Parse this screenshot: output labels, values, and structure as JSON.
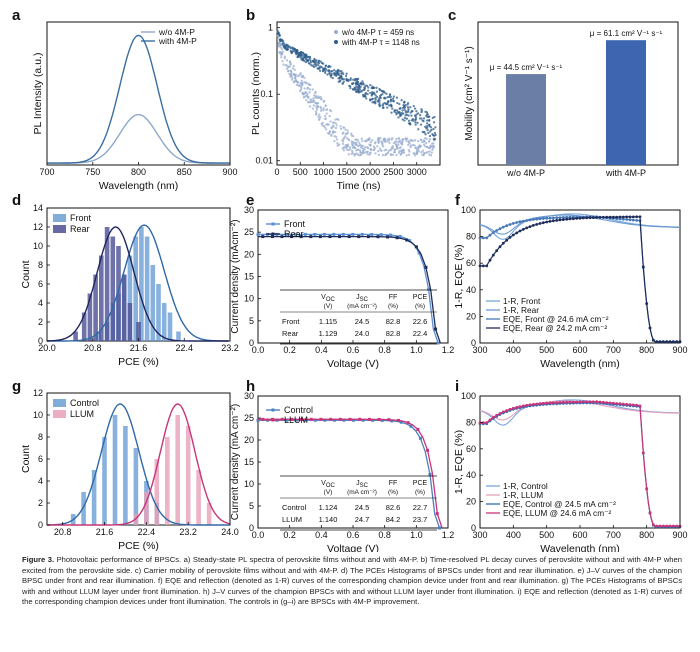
{
  "caption": {
    "label": "Figure 3.",
    "text": "Photovoltaic performance of BPSCs. a) Steady-state PL spectra of perovskite films without and with 4M-P. b) Time-resolved PL decay curves of perovskite without and with 4M-P when excited from the perovskite side. c) Carrier mobility of perovskite films without and with 4M-P. d) The PCEs Histograms of BPSCs under front and rear illumination. e) J–V curves of the champion BPSC under front and rear illumination. f) EQE and reflection (denoted as 1-R) curves of the corresponding champion device under front and rear illumination. g) The PCEs Histograms of BPSCs with and without LLUM layer under front illumination. h) J–V curves of the champion BPSCs with and without LLUM layer under front illumination. i) EQE and reflection (denoted as 1-R) curves of the corresponding champion devices under front illumination. The controls in (g–i) are BPSCs with 4M-P improvement."
  },
  "chart_data": [
    {
      "panel": "a",
      "type": "line",
      "xlabel": "Wavelength (nm)",
      "ylabel": "PL Intensity (a.u.)",
      "xlim": [
        700,
        900
      ],
      "xticks": [
        "700",
        "750",
        "800",
        "850",
        "900"
      ],
      "series": [
        {
          "name": "w/o 4M-P",
          "color": "#8ea9c9",
          "peak_x": 800,
          "peak_y": 0.38,
          "fwhm": 48
        },
        {
          "name": "with 4M-P",
          "color": "#3c6ea0",
          "peak_x": 800,
          "peak_y": 1.0,
          "fwhm": 48
        }
      ]
    },
    {
      "panel": "b",
      "type": "scatter",
      "xlabel": "Time (ns)",
      "ylabel": "PL counts (norm.)",
      "xlim": [
        0,
        3500
      ],
      "xticks": [
        "0",
        "500",
        "1000",
        "1500",
        "2000",
        "2500",
        "3000"
      ],
      "ylim_log": [
        0.01,
        1
      ],
      "yticks": [
        "0.01",
        "0.1",
        "1"
      ],
      "series": [
        {
          "name": "w/o 4M-P τ = 459 ns",
          "color": "#9aaed0",
          "tau": 459,
          "a1": 0.55,
          "t1": 40,
          "y_end": 0.03
        },
        {
          "name": "with 4M-P τ = 1148 ns",
          "color": "#2f5d8c",
          "tau": 1148,
          "a1": 0.4,
          "t1": 60,
          "y_end": 0.14
        }
      ]
    },
    {
      "panel": "c",
      "type": "bar",
      "xlabel": "",
      "ylabel": "Mobility (cm² V⁻¹ s⁻¹)",
      "ylim": [
        0,
        70
      ],
      "categories": [
        "w/o 4M-P",
        "with 4M-P"
      ],
      "values": [
        44.5,
        61.1
      ],
      "labels": [
        "μ = 44.5 cm² V⁻¹ s⁻¹",
        "μ = 61.1 cm² V⁻¹ s⁻¹"
      ]
    },
    {
      "panel": "d",
      "type": "bar",
      "xlabel": "PCE (%)",
      "ylabel": "Count",
      "xlim": [
        20.0,
        23.2
      ],
      "ylim": [
        0,
        14
      ],
      "xticks": [
        "20.0",
        "20.8",
        "21.6",
        "22.4",
        "23.2"
      ],
      "yticks": [
        "0",
        "2",
        "4",
        "6",
        "8",
        "10",
        "12",
        "14"
      ],
      "series": [
        {
          "name": "Front",
          "color": "#6a9fd4",
          "bins": [
            20.9,
            21.05,
            21.15,
            21.25,
            21.35,
            21.45,
            21.55,
            21.65,
            21.75,
            21.85,
            21.95,
            22.05,
            22.15,
            22.3
          ],
          "counts": [
            1,
            2,
            4,
            5,
            7,
            9,
            11,
            12,
            11,
            8,
            6,
            4,
            3,
            1
          ],
          "fit_mean": 21.7,
          "fit_sigma": 0.35,
          "fit_peak": 12.2
        },
        {
          "name": "Rear",
          "color": "#4b4f93",
          "bins": [
            20.5,
            20.65,
            20.75,
            20.85,
            20.95,
            21.05,
            21.15,
            21.25,
            21.35,
            21.45,
            21.6
          ],
          "counts": [
            1,
            3,
            5,
            7,
            9,
            12,
            11,
            10,
            7,
            4,
            2
          ],
          "fit_mean": 21.2,
          "fit_sigma": 0.32,
          "fit_peak": 12.0
        }
      ]
    },
    {
      "panel": "e",
      "type": "line",
      "xlabel": "Voltage (V)",
      "ylabel": "Current density (mAcm⁻²)",
      "xlim": [
        0,
        1.2
      ],
      "ylim": [
        0,
        30
      ],
      "xticks": [
        "0.0",
        "0.2",
        "0.4",
        "0.6",
        "0.8",
        "1.0",
        "1.2"
      ],
      "yticks": [
        "0",
        "5",
        "10",
        "15",
        "20",
        "25",
        "30"
      ],
      "series": [
        {
          "name": "Front",
          "color": "#5b8fd0",
          "jsc": 24.5,
          "voc": 1.115
        },
        {
          "name": "Rear",
          "color": "#1f2d5a",
          "jsc": 24.0,
          "voc": 1.129
        }
      ],
      "table": {
        "headers": [
          "V_OC (V)",
          "J_SC (mA cm⁻²)",
          "FF (%)",
          "PCE (%)"
        ],
        "rows": [
          {
            "label": "Front",
            "values": [
              "1.115",
              "24.5",
              "82.8",
              "22.6"
            ]
          },
          {
            "label": "Rear",
            "values": [
              "1.129",
              "24.0",
              "82.8",
              "22.4"
            ]
          }
        ]
      }
    },
    {
      "panel": "f",
      "type": "line",
      "xlabel": "Wavelength (nm)",
      "ylabel": "1-R, EQE (%)",
      "xlim": [
        300,
        900
      ],
      "ylim": [
        0,
        100
      ],
      "xticks": [
        "300",
        "400",
        "500",
        "600",
        "700",
        "800",
        "900"
      ],
      "yticks": [
        "0",
        "20",
        "40",
        "60",
        "80",
        "100"
      ],
      "series": [
        {
          "name": "1-R, Front",
          "color": "#7aa6dc"
        },
        {
          "name": "1-R, Rear",
          "color": "#6b9ad1"
        },
        {
          "name": "EQE, Front @ 24.6 mA cm⁻²",
          "color": "#4878b8"
        },
        {
          "name": "EQE, Rear @ 24.2 mA cm⁻²",
          "color": "#1f2d5a"
        }
      ]
    },
    {
      "panel": "g",
      "type": "bar",
      "xlabel": "PCE (%)",
      "ylabel": "Count",
      "xlim": [
        20.5,
        24.0
      ],
      "ylim": [
        0,
        12
      ],
      "xticks": [
        "20.8",
        "21.6",
        "22.4",
        "23.2",
        "24.0"
      ],
      "yticks": [
        "0",
        "2",
        "4",
        "6",
        "8",
        "10",
        "12"
      ],
      "series": [
        {
          "name": "Control",
          "color": "#6a9fd4",
          "bins": [
            21.0,
            21.2,
            21.4,
            21.6,
            21.8,
            22.0,
            22.2,
            22.4,
            22.6
          ],
          "counts": [
            1,
            3,
            5,
            8,
            10,
            9,
            7,
            4,
            2
          ],
          "fit_mean": 21.9,
          "fit_sigma": 0.36,
          "fit_peak": 11.0
        },
        {
          "name": "LLUM",
          "color": "#e8a0b8",
          "bins": [
            22.2,
            22.4,
            22.6,
            22.8,
            23.0,
            23.2,
            23.4,
            23.6
          ],
          "counts": [
            1,
            3,
            6,
            8,
            10,
            9,
            5,
            2
          ],
          "fit_mean": 23.0,
          "fit_sigma": 0.33,
          "fit_peak": 11.0
        }
      ]
    },
    {
      "panel": "h",
      "type": "line",
      "xlabel": "Voltage (V)",
      "ylabel": "Current density (mA cm⁻²)",
      "xlim": [
        0,
        1.2
      ],
      "ylim": [
        0,
        30
      ],
      "xticks": [
        "0.0",
        "0.2",
        "0.4",
        "0.6",
        "0.8",
        "1.0",
        "1.2"
      ],
      "yticks": [
        "0",
        "5",
        "10",
        "15",
        "20",
        "25",
        "30"
      ],
      "series": [
        {
          "name": "Control",
          "color": "#4c7fc0",
          "jsc": 24.5,
          "voc": 1.124
        },
        {
          "name": "LLUM",
          "color": "#c8357a",
          "jsc": 24.7,
          "voc": 1.14
        }
      ],
      "table": {
        "headers": [
          "V_OC (V)",
          "J_SC (mA cm⁻²)",
          "FF (%)",
          "PCE (%)"
        ],
        "rows": [
          {
            "label": "Control",
            "values": [
              "1.124",
              "24.5",
              "82.6",
              "22.7"
            ]
          },
          {
            "label": "LLUM",
            "values": [
              "1.140",
              "24.7",
              "84.2",
              "23.7"
            ]
          }
        ]
      }
    },
    {
      "panel": "i",
      "type": "line",
      "xlabel": "Wavelength (nm)",
      "ylabel": "1-R, EQE (%)",
      "xlim": [
        300,
        900
      ],
      "ylim": [
        0,
        100
      ],
      "xticks": [
        "300",
        "400",
        "500",
        "600",
        "700",
        "800",
        "900"
      ],
      "yticks": [
        "0",
        "20",
        "40",
        "60",
        "80",
        "100"
      ],
      "series": [
        {
          "name": "1-R, Control",
          "color": "#7aa6dc"
        },
        {
          "name": "1-R, LLUM",
          "color": "#e8a0c0"
        },
        {
          "name": "EQE, Control @ 24.5 mA cm⁻²",
          "color": "#2f6db0"
        },
        {
          "name": "EQE, LLUM @ 24.6 mA cm⁻²",
          "color": "#c8357a"
        }
      ]
    }
  ]
}
